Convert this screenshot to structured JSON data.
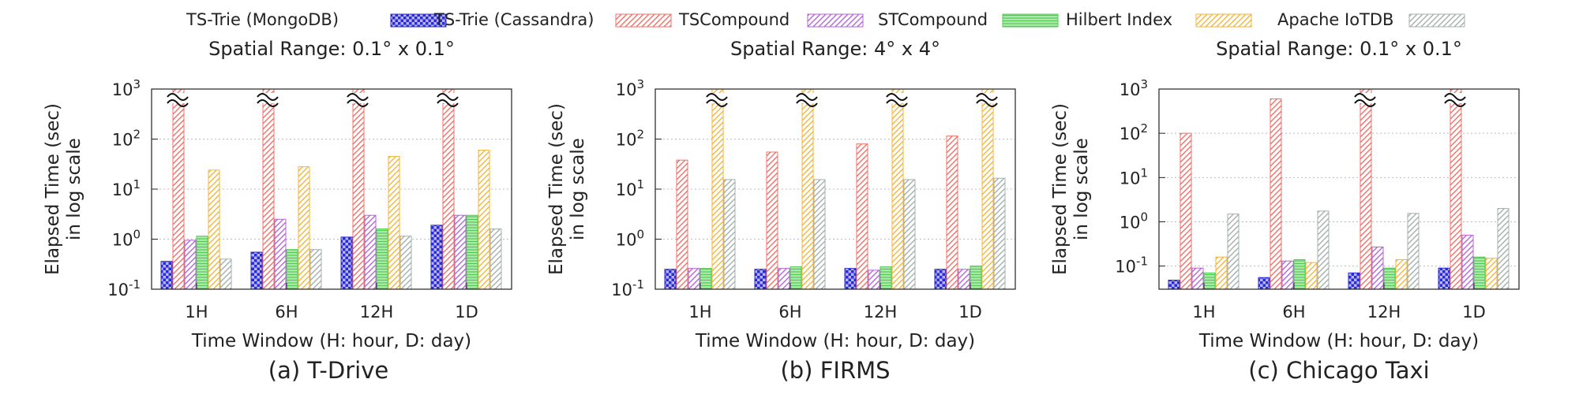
{
  "legend": [
    {
      "name": "TS-Trie (MongoDB)",
      "color": "#2b2bd6",
      "pattern": "checker"
    },
    {
      "name": "TS-Trie (Cassandra)",
      "color": "#f07068",
      "pattern": "diag"
    },
    {
      "name": "TSCompound",
      "color": "#b565d8",
      "pattern": "diag"
    },
    {
      "name": "STCompound",
      "color": "#4fcc4f",
      "pattern": "horizontal"
    },
    {
      "name": "Hilbert Index",
      "color": "#f3b53a",
      "pattern": "diag"
    },
    {
      "name": "Apache IoTDB",
      "color": "#a3b0ad",
      "pattern": "diag"
    }
  ],
  "chart_data": [
    {
      "type": "bar",
      "caption": "(a) T-Drive",
      "subtitle": "Spatial Range: 0.1° x 0.1°",
      "xlabel": "Time Window (H: hour, D: day)",
      "ylabel": [
        "Elapsed Time (sec)",
        "in log scale"
      ],
      "ylog": true,
      "ylim": [
        0.1,
        1000
      ],
      "yticks": [
        {
          "base": "10",
          "exp": "-1"
        },
        {
          "base": "10",
          "exp": "0"
        },
        {
          "base": "10",
          "exp": "1"
        },
        {
          "base": "10",
          "exp": "2"
        },
        {
          "base": "10",
          "exp": "3"
        }
      ],
      "categories": [
        "1H",
        "6H",
        "12H",
        "1D"
      ],
      "series": [
        {
          "name": "TS-Trie (MongoDB)",
          "values": [
            0.36,
            0.55,
            1.1,
            1.9
          ],
          "broken": [
            false,
            false,
            false,
            false
          ]
        },
        {
          "name": "TS-Trie (Cassandra)",
          "values": [
            1000,
            1000,
            1000,
            1000
          ],
          "broken": [
            true,
            true,
            true,
            true
          ]
        },
        {
          "name": "TSCompound",
          "values": [
            0.95,
            2.5,
            3.0,
            3.0
          ],
          "broken": [
            false,
            false,
            false,
            false
          ]
        },
        {
          "name": "STCompound",
          "values": [
            1.15,
            0.62,
            1.6,
            3.0
          ],
          "broken": [
            false,
            false,
            false,
            false
          ]
        },
        {
          "name": "Hilbert Index",
          "values": [
            24,
            28,
            45,
            60
          ],
          "broken": [
            false,
            false,
            false,
            false
          ]
        },
        {
          "name": "Apache IoTDB",
          "values": [
            0.4,
            0.62,
            1.15,
            1.6
          ],
          "broken": [
            false,
            false,
            false,
            false
          ]
        }
      ],
      "grid": true
    },
    {
      "type": "bar",
      "caption": "(b) FIRMS",
      "subtitle": "Spatial Range: 4° x 4°",
      "xlabel": "Time Window (H: hour, D: day)",
      "ylabel": [
        "Elapsed Time (sec)",
        "in log scale"
      ],
      "ylog": true,
      "ylim": [
        0.1,
        1000
      ],
      "yticks": [
        {
          "base": "10",
          "exp": "-1"
        },
        {
          "base": "10",
          "exp": "0"
        },
        {
          "base": "10",
          "exp": "1"
        },
        {
          "base": "10",
          "exp": "2"
        },
        {
          "base": "10",
          "exp": "3"
        }
      ],
      "categories": [
        "1H",
        "6H",
        "12H",
        "1D"
      ],
      "series": [
        {
          "name": "TS-Trie (MongoDB)",
          "values": [
            0.25,
            0.25,
            0.26,
            0.25
          ],
          "broken": [
            false,
            false,
            false,
            false
          ]
        },
        {
          "name": "TS-Trie (Cassandra)",
          "values": [
            38,
            55,
            80,
            115
          ],
          "broken": [
            false,
            false,
            false,
            false
          ]
        },
        {
          "name": "TSCompound",
          "values": [
            0.26,
            0.26,
            0.24,
            0.25
          ],
          "broken": [
            false,
            false,
            false,
            false
          ]
        },
        {
          "name": "STCompound",
          "values": [
            0.26,
            0.28,
            0.28,
            0.29
          ],
          "broken": [
            false,
            false,
            false,
            false
          ]
        },
        {
          "name": "Hilbert Index",
          "values": [
            1000,
            1000,
            1000,
            1000
          ],
          "broken": [
            true,
            true,
            true,
            true
          ]
        },
        {
          "name": "Apache IoTDB",
          "values": [
            15.5,
            15.5,
            15.5,
            16.5
          ],
          "broken": [
            false,
            false,
            false,
            false
          ]
        }
      ],
      "grid": true
    },
    {
      "type": "bar",
      "caption": "(c) Chicago Taxi",
      "subtitle": "Spatial Range: 0.1° x 0.1°",
      "xlabel": "Time Window (H: hour, D: day)",
      "ylabel": [
        "Elapsed Time (sec)",
        "in log scale"
      ],
      "ylog": true,
      "ylim": [
        0.03,
        1000
      ],
      "yticks": [
        {
          "base": "10",
          "exp": "-1"
        },
        {
          "base": "10",
          "exp": "0"
        },
        {
          "base": "10",
          "exp": "1"
        },
        {
          "base": "10",
          "exp": "2"
        },
        {
          "base": "10",
          "exp": "3"
        }
      ],
      "categories": [
        "1H",
        "6H",
        "12H",
        "1D"
      ],
      "series": [
        {
          "name": "TS-Trie (MongoDB)",
          "values": [
            0.048,
            0.055,
            0.07,
            0.09
          ],
          "broken": [
            false,
            false,
            false,
            false
          ]
        },
        {
          "name": "TS-Trie (Cassandra)",
          "values": [
            100,
            600,
            1000,
            1000
          ],
          "broken": [
            false,
            false,
            true,
            true
          ]
        },
        {
          "name": "TSCompound",
          "values": [
            0.09,
            0.13,
            0.27,
            0.5
          ],
          "broken": [
            false,
            false,
            false,
            false
          ]
        },
        {
          "name": "STCompound",
          "values": [
            0.07,
            0.14,
            0.09,
            0.16
          ],
          "broken": [
            false,
            false,
            false,
            false
          ]
        },
        {
          "name": "Hilbert Index",
          "values": [
            0.16,
            0.12,
            0.14,
            0.15
          ],
          "broken": [
            false,
            false,
            false,
            false
          ]
        },
        {
          "name": "Apache IoTDB",
          "values": [
            1.5,
            1.75,
            1.55,
            2.0
          ],
          "broken": [
            false,
            false,
            false,
            false
          ]
        }
      ],
      "grid": true
    }
  ]
}
